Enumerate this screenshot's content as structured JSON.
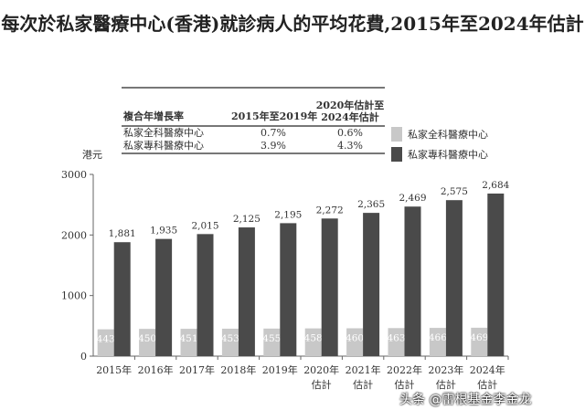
{
  "title": "每次於私家醫療中心(香港)就診病人的平均花費,2015年至2024年估計",
  "cagr_table": {
    "header": [
      "複合年增長率",
      "2015年至2019年",
      "2020年估計至2024年估計"
    ],
    "rows": [
      [
        "私家全科醫療中心",
        "0.7%",
        "0.6%"
      ],
      [
        "私家專科醫療中心",
        "3.9%",
        "4.3%"
      ]
    ]
  },
  "watermark": "头条 @雷根基金李金龙",
  "chart_data": {
    "type": "bar",
    "ylabel": "港元",
    "ylim": [
      0,
      3000
    ],
    "yticks": [
      "0",
      "1000",
      "2000",
      "3000"
    ],
    "categories": [
      "2015年",
      "2016年",
      "2017年",
      "2018年",
      "2019年",
      "2020年\n估計",
      "2021年\n估計",
      "2022年\n估計",
      "2023年\n估計",
      "2024年\n估計"
    ],
    "series": [
      {
        "name": "私家全科醫療中心",
        "color": "#c8c8c8",
        "values": [
          443,
          450,
          451,
          453,
          455,
          458,
          460,
          463,
          466,
          469
        ]
      },
      {
        "name": "私家專科醫療中心",
        "color": "#4a4a4a",
        "values": [
          1881,
          1935,
          2015,
          2125,
          2195,
          2272,
          2365,
          2469,
          2575,
          2684
        ]
      }
    ],
    "legend": "top-right",
    "grid": false
  }
}
